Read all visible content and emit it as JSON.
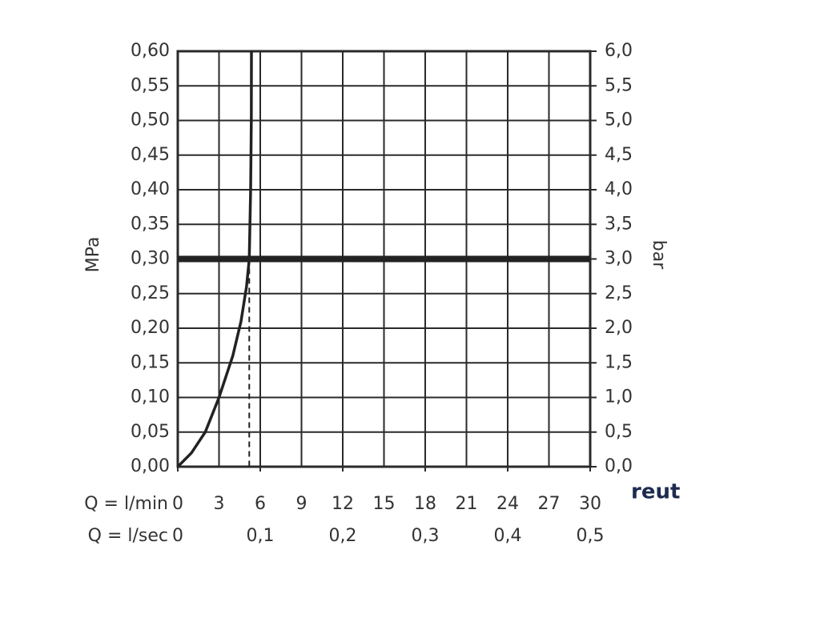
{
  "chart_data": {
    "type": "line",
    "xlabel": "Q = l/min",
    "x2label": "Q = l/sec",
    "ylabel": "MPa",
    "y2label": "bar",
    "xlim": [
      0,
      30
    ],
    "xticks": [
      0,
      3,
      6,
      9,
      12,
      15,
      18,
      21,
      24,
      27,
      30
    ],
    "x2lim": [
      0,
      0.5
    ],
    "x2ticks": [
      0,
      {
        "value": 0.1,
        "label": "0,1"
      },
      {
        "value": 0.2,
        "label": "0,2"
      },
      {
        "value": 0.3,
        "label": "0,3"
      },
      {
        "value": 0.4,
        "label": "0,4"
      },
      {
        "value": 0.5,
        "label": "0,5"
      }
    ],
    "ylim": [
      0,
      0.6
    ],
    "yticks": [
      {
        "value": 0,
        "label": "0,00"
      },
      {
        "value": 0.05,
        "label": "0,05"
      },
      {
        "value": 0.1,
        "label": "0,10"
      },
      {
        "value": 0.15,
        "label": "0,15"
      },
      {
        "value": 0.2,
        "label": "0,20"
      },
      {
        "value": 0.25,
        "label": "0,25"
      },
      {
        "value": 0.3,
        "label": "0,30"
      },
      {
        "value": 0.35,
        "label": "0,35"
      },
      {
        "value": 0.4,
        "label": "0,40"
      },
      {
        "value": 0.45,
        "label": "0,45"
      },
      {
        "value": 0.5,
        "label": "0,50"
      },
      {
        "value": 0.55,
        "label": "0,55"
      },
      {
        "value": 0.6,
        "label": "0,60"
      }
    ],
    "y2lim": [
      0,
      6
    ],
    "y2ticks": [
      {
        "value": 0,
        "label": "0,0"
      },
      {
        "value": 0.5,
        "label": "0,5"
      },
      {
        "value": 1,
        "label": "1,0"
      },
      {
        "value": 1.5,
        "label": "1,5"
      },
      {
        "value": 2,
        "label": "2,0"
      },
      {
        "value": 2.5,
        "label": "2,5"
      },
      {
        "value": 3,
        "label": "3,0"
      },
      {
        "value": 3.5,
        "label": "3,5"
      },
      {
        "value": 4,
        "label": "4,0"
      },
      {
        "value": 4.5,
        "label": "4,5"
      },
      {
        "value": 5,
        "label": "5,0"
      },
      {
        "value": 5.5,
        "label": "5,5"
      },
      {
        "value": 6,
        "label": "6,0"
      }
    ],
    "grid": true,
    "series": [
      {
        "color": "#222222",
        "x": [
          0,
          1,
          2,
          3,
          4,
          4.6,
          5,
          5.2,
          5.3,
          5.35,
          5.36
        ],
        "values": [
          0,
          0.02,
          0.05,
          0.1,
          0.16,
          0.21,
          0.26,
          0.3,
          0.4,
          0.5,
          0.6
        ]
      }
    ],
    "reference_y": 0.3,
    "reference_x": 5.2,
    "logo": "reut"
  }
}
